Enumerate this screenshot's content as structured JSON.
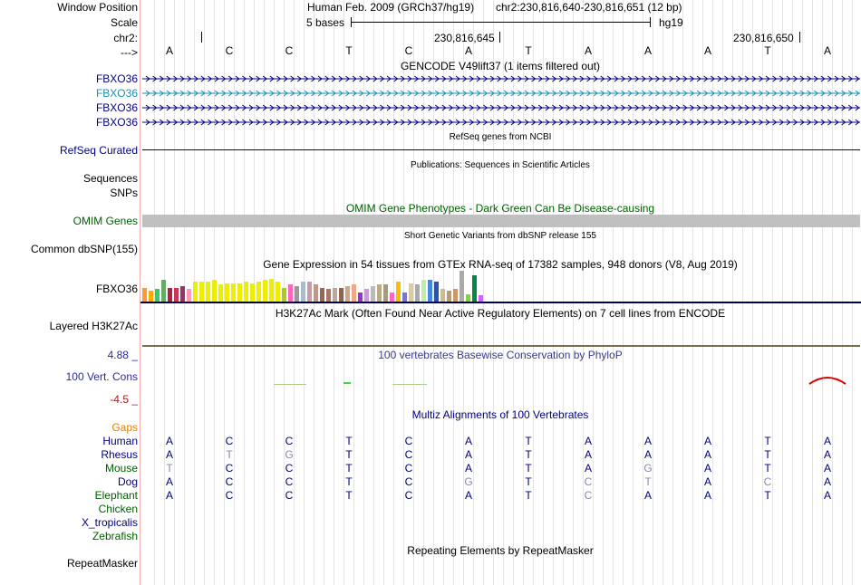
{
  "header": {
    "window_position_label": "Window Position",
    "scale_label": "Scale",
    "chr_label": "chr2:",
    "strand_label": "--->",
    "assembly": "Human Feb. 2009 (GRCh37/hg19)",
    "coords": "chr2:230,816,640-230,816,651 (12 bp)",
    "scale_text": "5 bases",
    "db_text": "hg19",
    "pos_ticks": [
      "230,816,645",
      "230,816,650"
    ]
  },
  "bases": [
    "A",
    "C",
    "C",
    "T",
    "C",
    "A",
    "T",
    "A",
    "A",
    "A",
    "T",
    "A"
  ],
  "gencode": {
    "title": "GENCODE V49lift37 (1 items filtered out)",
    "rows": [
      {
        "label": "FBXO36",
        "color": "#000080"
      },
      {
        "label": "FBXO36",
        "color": "#1a8fb5"
      },
      {
        "label": "FBXO36",
        "color": "#000080"
      },
      {
        "label": "FBXO36",
        "color": "#000080"
      }
    ]
  },
  "refseq": {
    "label": "RefSeq Curated",
    "title": "RefSeq genes from NCBI"
  },
  "publications": {
    "label": "Sequences",
    "title": "Publications: Sequences in Scientific Articles"
  },
  "snps_label": "SNPs",
  "omim": {
    "label": "OMIM Genes",
    "title": "OMIM Gene Phenotypes - Dark Green Can Be Disease-causing"
  },
  "dbsnp": {
    "label": "Common dbSNP(155)",
    "title": "Short Genetic Variants from dbSNP release 155"
  },
  "gtex": {
    "label": "FBXO36",
    "title": "Gene Expression in 54 tissues from GTEx RNA-seq of 17382 samples, 948 donors (V8, Aug 2019)",
    "bars": [
      {
        "v": 0.45,
        "c": "#ff9933"
      },
      {
        "v": 0.35,
        "c": "#ffaa00"
      },
      {
        "v": 0.4,
        "c": "#33cc66"
      },
      {
        "v": 0.7,
        "c": "#66aa66"
      },
      {
        "v": 0.45,
        "c": "#aa2244"
      },
      {
        "v": 0.45,
        "c": "#cc3355"
      },
      {
        "v": 0.5,
        "c": "#993366"
      },
      {
        "v": 0.4,
        "c": "#ff99bb"
      },
      {
        "v": 0.65,
        "c": "#eeee00"
      },
      {
        "v": 0.65,
        "c": "#eeee00"
      },
      {
        "v": 0.65,
        "c": "#eeee00"
      },
      {
        "v": 0.7,
        "c": "#eeee00"
      },
      {
        "v": 0.55,
        "c": "#eeee00"
      },
      {
        "v": 0.6,
        "c": "#eeee00"
      },
      {
        "v": 0.6,
        "c": "#eeee00"
      },
      {
        "v": 0.6,
        "c": "#eeee00"
      },
      {
        "v": 0.65,
        "c": "#eeee00"
      },
      {
        "v": 0.6,
        "c": "#eeee00"
      },
      {
        "v": 0.65,
        "c": "#eeee00"
      },
      {
        "v": 0.7,
        "c": "#eeee00"
      },
      {
        "v": 0.75,
        "c": "#eeee00"
      },
      {
        "v": 0.65,
        "c": "#eeee00"
      },
      {
        "v": 0.45,
        "c": "#aacc22"
      },
      {
        "v": 0.55,
        "c": "#ff66bb"
      },
      {
        "v": 0.5,
        "c": "#999999"
      },
      {
        "v": 0.65,
        "c": "#aabbcc"
      },
      {
        "v": 0.65,
        "c": "#cc99aa"
      },
      {
        "v": 0.55,
        "c": "#bb9988"
      },
      {
        "v": 0.45,
        "c": "#996655"
      },
      {
        "v": 0.4,
        "c": "#aa7766"
      },
      {
        "v": 0.45,
        "c": "#bbaa99"
      },
      {
        "v": 0.45,
        "c": "#886655"
      },
      {
        "v": 0.5,
        "c": "#ccaa88"
      },
      {
        "v": 0.55,
        "c": "#eeaa88"
      },
      {
        "v": 0.3,
        "c": "#9933cc"
      },
      {
        "v": 0.4,
        "c": "#cc99dd"
      },
      {
        "v": 0.5,
        "c": "#bbbbbb"
      },
      {
        "v": 0.55,
        "c": "#bbaa88"
      },
      {
        "v": 0.55,
        "c": "#aa9977"
      },
      {
        "v": 0.3,
        "c": "#ff66cc"
      },
      {
        "v": 0.65,
        "c": "#ffbb00"
      },
      {
        "v": 0.3,
        "c": "#7777cc"
      },
      {
        "v": 0.6,
        "c": "#ddcc99"
      },
      {
        "v": 0.55,
        "c": "#aaaaaa"
      },
      {
        "v": 0.7,
        "c": "#bbeeaa"
      },
      {
        "v": 0.7,
        "c": "#4488dd"
      },
      {
        "v": 0.65,
        "c": "#2255bb"
      },
      {
        "v": 0.4,
        "c": "#ccbb99"
      },
      {
        "v": 0.35,
        "c": "#bb9977"
      },
      {
        "v": 0.4,
        "c": "#cc9966"
      },
      {
        "v": 1.0,
        "c": "#aaaaaa"
      },
      {
        "v": 0.25,
        "c": "#88cc55"
      },
      {
        "v": 0.85,
        "c": "#008844"
      },
      {
        "v": 0.2,
        "c": "#cc66ff"
      }
    ]
  },
  "h3k27ac": {
    "label": "Layered H3K27Ac",
    "title": "H3K27Ac Mark (Often Found Near Active Regulatory Elements) on 7 cell lines from ENCODE"
  },
  "phylop": {
    "label": "100 Vert. Cons",
    "title": "100 vertebrates Basewise Conservation by PhyloP",
    "ymax": "4.88 _",
    "ymin": "-4.5 _"
  },
  "multiz": {
    "title": "Multiz Alignments of 100 Vertebrates",
    "gaps_label": "Gaps",
    "species": [
      {
        "name": "Human",
        "color": "#000080",
        "bases": [
          "A",
          "C",
          "C",
          "T",
          "C",
          "A",
          "T",
          "A",
          "A",
          "A",
          "T",
          "A"
        ],
        "diff": [
          0,
          0,
          0,
          0,
          0,
          0,
          0,
          0,
          0,
          0,
          0,
          0
        ]
      },
      {
        "name": "Rhesus",
        "color": "#000080",
        "bases": [
          "A",
          "T",
          "G",
          "T",
          "C",
          "A",
          "T",
          "A",
          "A",
          "A",
          "T",
          "A"
        ],
        "diff": [
          0,
          1,
          1,
          0,
          0,
          0,
          0,
          0,
          0,
          0,
          0,
          0
        ]
      },
      {
        "name": "Mouse",
        "color": "#006000",
        "bases": [
          "T",
          "C",
          "C",
          "T",
          "C",
          "A",
          "T",
          "A",
          "G",
          "A",
          "T",
          "A"
        ],
        "diff": [
          1,
          0,
          0,
          0,
          0,
          0,
          0,
          0,
          1,
          0,
          0,
          0
        ]
      },
      {
        "name": "Dog",
        "color": "#000080",
        "bases": [
          "A",
          "C",
          "C",
          "T",
          "C",
          "G",
          "T",
          "C",
          "T",
          "A",
          "C",
          "A"
        ],
        "diff": [
          0,
          0,
          0,
          0,
          0,
          1,
          0,
          1,
          1,
          0,
          1,
          0
        ]
      },
      {
        "name": "Elephant",
        "color": "#006000",
        "bases": [
          "A",
          "C",
          "C",
          "T",
          "C",
          "A",
          "T",
          "C",
          "A",
          "A",
          "T",
          "A"
        ],
        "diff": [
          0,
          0,
          0,
          0,
          0,
          0,
          0,
          1,
          0,
          0,
          0,
          0
        ]
      },
      {
        "name": "Chicken",
        "color": "#006000",
        "bases": [],
        "diff": []
      },
      {
        "name": "X_tropicalis",
        "color": "#000080",
        "bases": [],
        "diff": []
      },
      {
        "name": "Zebrafish",
        "color": "#006000",
        "bases": [],
        "diff": []
      }
    ]
  },
  "repeatmasker": {
    "label": "RepeatMasker",
    "title": "Repeating Elements by RepeatMasker"
  },
  "colors": {
    "label_navy": "#000080",
    "omim_green": "#006000",
    "phylop_blue": "#3a3a8a",
    "phylop_max": "#2a2a9a",
    "phylop_min": "#a02020",
    "gaps_orange": "#e08000",
    "diff_gray": "#8888aa"
  }
}
